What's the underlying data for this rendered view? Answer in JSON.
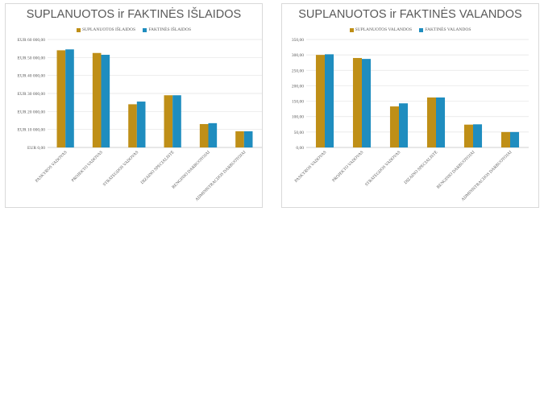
{
  "colors": {
    "planned": "#BF8F17",
    "actual": "#1F8DBF",
    "grid": "#e3e3e3",
    "text": "#595959"
  },
  "chart_data": [
    {
      "type": "bar",
      "title": "SUPLANUOTOS ir FAKTINĖS IŠLAIDOS",
      "categories": [
        "PASKYROS VADOVAS",
        "PROJEKTO VADOVAS",
        "STRATEGIJOS VADOVAS",
        "DIZAINO SPECIALISTĖ",
        "RENGINIO DARBUOTOJAI",
        "ADMINISTRACIJOS DARBUOTOJAI"
      ],
      "series": [
        {
          "name": "SUPLANUOTOS IŠLAIDOS",
          "values": [
            54000,
            52500,
            24000,
            29000,
            13000,
            9000
          ]
        },
        {
          "name": "FAKTINĖS IŠLAIDOS",
          "values": [
            54500,
            51500,
            25500,
            29000,
            13500,
            9000
          ]
        }
      ],
      "ylim": [
        0,
        60000
      ],
      "yticks": [
        "EUR 0,00",
        "EUR 10 000,00",
        "EUR 20 000,00",
        "EUR 30 000,00",
        "EUR 40 000,00",
        "EUR 50 000,00",
        "EUR 60 000,00"
      ],
      "legend_position": "top",
      "grid": true
    },
    {
      "type": "bar",
      "title": "SUPLANUOTOS ir FAKTINĖS VALANDOS",
      "categories": [
        "PASKYROS VADOVAS",
        "PROJEKTO VADOVAS",
        "STRATEGIJOS VADOVAS",
        "DIZAINO SPECIALISTĖ",
        "RENGINIO DARBUOTOJAI",
        "ADMINISTRACIJOS DARBUOTOJAI"
      ],
      "series": [
        {
          "name": "SUPLANUOTOS VALANDOS",
          "values": [
            300,
            290,
            133,
            162,
            74,
            50
          ]
        },
        {
          "name": "FAKTINĖS VALANDOS",
          "values": [
            302,
            287,
            143,
            162,
            75,
            50
          ]
        }
      ],
      "ylim": [
        0,
        350
      ],
      "yticks": [
        "0,00",
        "50,00",
        "100,00",
        "150,00",
        "200,00",
        "250,00",
        "300,00",
        "350,00"
      ],
      "legend_position": "top",
      "grid": true
    }
  ]
}
